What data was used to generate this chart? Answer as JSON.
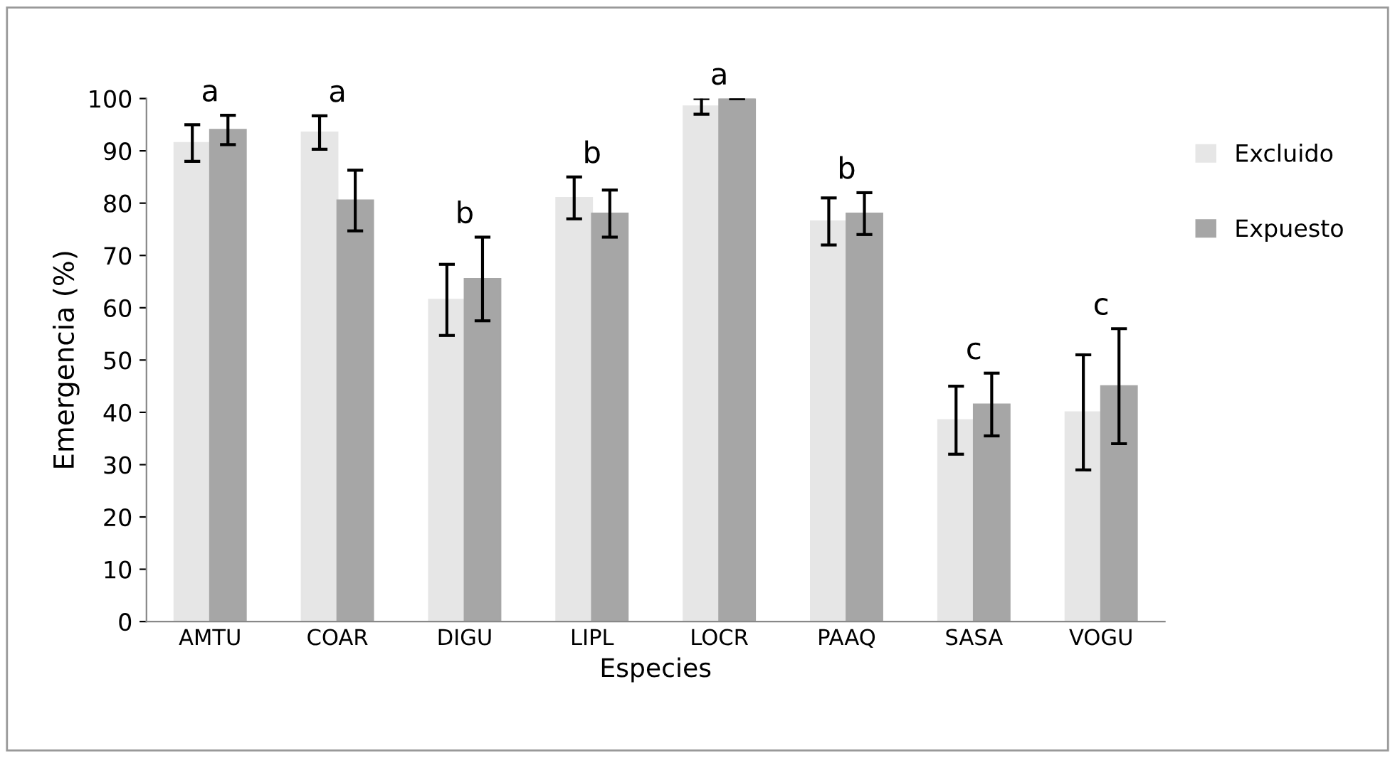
{
  "chart_data": {
    "type": "bar",
    "xlabel": "Especies",
    "ylabel": "Emergencia (%)",
    "categories": [
      "AMTU",
      "COAR",
      "DIGU",
      "LIPL",
      "LOCR",
      "PAAQ",
      "SASA",
      "VOGU"
    ],
    "series": [
      {
        "name": "Excluido",
        "color": "#e6e6e6",
        "values": [
          91.5,
          93.5,
          61.5,
          81,
          98.5,
          76.5,
          38.5,
          40
        ],
        "errors": [
          3.5,
          3.2,
          6.8,
          4,
          1.5,
          4.5,
          6.5,
          11
        ]
      },
      {
        "name": "Expuesto",
        "color": "#a6a6a6",
        "values": [
          94,
          80.5,
          65.5,
          78,
          100,
          78,
          41.5,
          45
        ],
        "errors": [
          2.8,
          5.8,
          8,
          4.5,
          0,
          4,
          6,
          11
        ]
      }
    ],
    "ylim": [
      0,
      100
    ],
    "yticks": [
      0,
      10,
      20,
      30,
      40,
      50,
      60,
      70,
      80,
      90,
      100
    ],
    "grid": false,
    "legend": "right",
    "annotations": [
      "a",
      "a",
      "b",
      "b",
      "a",
      "b",
      "c",
      "c"
    ]
  }
}
